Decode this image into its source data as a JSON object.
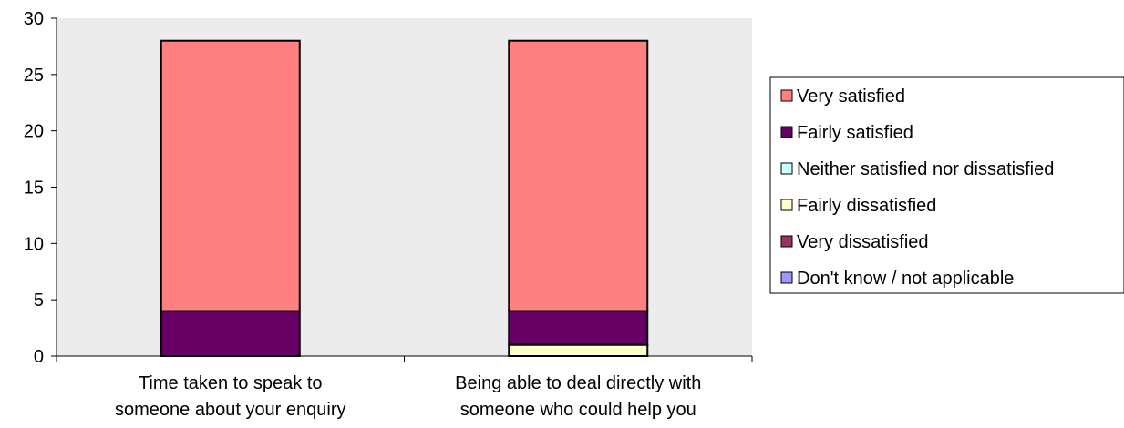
{
  "chart_data": {
    "type": "bar",
    "stacked": true,
    "categories": [
      [
        "Time taken to speak to",
        "someone about your enquiry"
      ],
      [
        "Being able to deal directly with",
        "someone who could help you"
      ]
    ],
    "series": [
      {
        "name": "Don't know / not applicable",
        "color": "#9999ff",
        "values": [
          0,
          0
        ]
      },
      {
        "name": "Very dissatisfied",
        "color": "#993366",
        "values": [
          0,
          0
        ]
      },
      {
        "name": "Fairly dissatisfied",
        "color": "#ffffcc",
        "values": [
          0,
          1
        ]
      },
      {
        "name": "Neither satisfied nor dissatisfied",
        "color": "#ccffff",
        "values": [
          0,
          0
        ]
      },
      {
        "name": "Fairly satisfied",
        "color": "#660066",
        "values": [
          4,
          3
        ]
      },
      {
        "name": "Very satisfied",
        "color": "#ff8080",
        "values": [
          24,
          24
        ]
      }
    ],
    "legend_order": [
      "Very satisfied",
      "Fairly satisfied",
      "Neither satisfied nor dissatisfied",
      "Fairly dissatisfied",
      "Very dissatisfied",
      "Don't know / not applicable"
    ],
    "yticks": [
      "0",
      "5",
      "10",
      "15",
      "20",
      "25",
      "30"
    ],
    "ylim": [
      0,
      30
    ],
    "plot_background": "#ececec",
    "legend_position": "right",
    "grid": false
  }
}
